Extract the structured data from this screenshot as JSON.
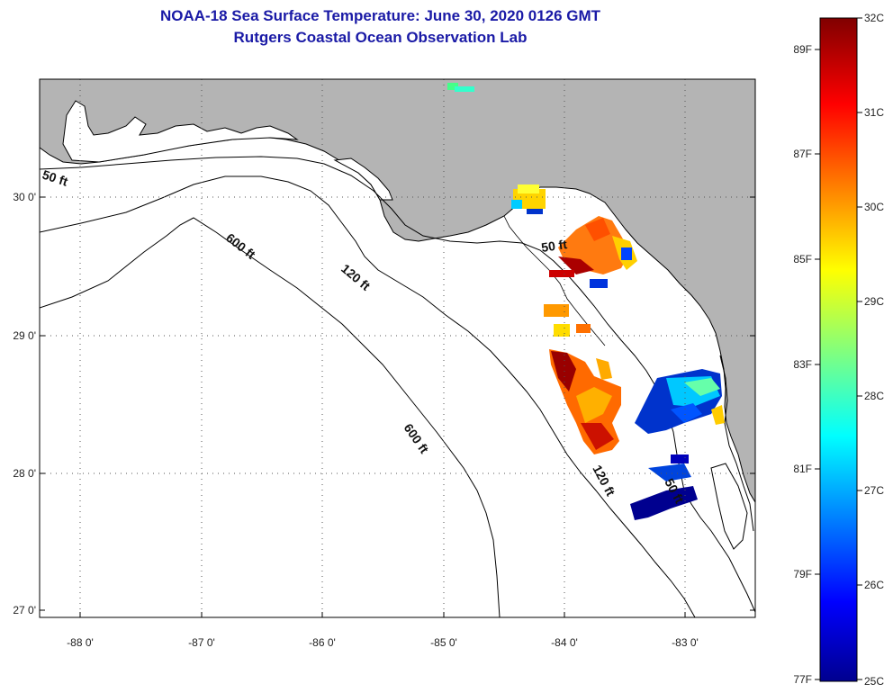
{
  "title": {
    "line1": "NOAA-18 Sea Surface Temperature:  June 30, 2020 0126 GMT",
    "line2": "Rutgers Coastal Ocean Observation Lab"
  },
  "map": {
    "lat_labels": [
      "30 0'",
      "29 0'",
      "28 0'",
      "27 0'"
    ],
    "lon_labels": [
      "-88 0'",
      "-87 0'",
      "-86 0'",
      "-85 0'",
      "-84 0'",
      "-83 0'"
    ],
    "contour_labels": {
      "c50_west": "50 ft",
      "c50_east": "50 ft",
      "c120_mid": "120 ft",
      "c120_south": "120 ft",
      "c600_north": "600 ft",
      "c600_south": "600 ft",
      "c50_south": "50 ft"
    },
    "colors": {
      "land": "#b4b4b4",
      "ocean": "#ffffff"
    }
  },
  "colorbar": {
    "fahrenheit": [
      "89F",
      "87F",
      "85F",
      "83F",
      "81F",
      "79F",
      "77F"
    ],
    "celsius": [
      "32C",
      "31C",
      "30C",
      "29C",
      "28C",
      "27C",
      "26C",
      "25C"
    ],
    "min_c": 25,
    "max_c": 32
  }
}
